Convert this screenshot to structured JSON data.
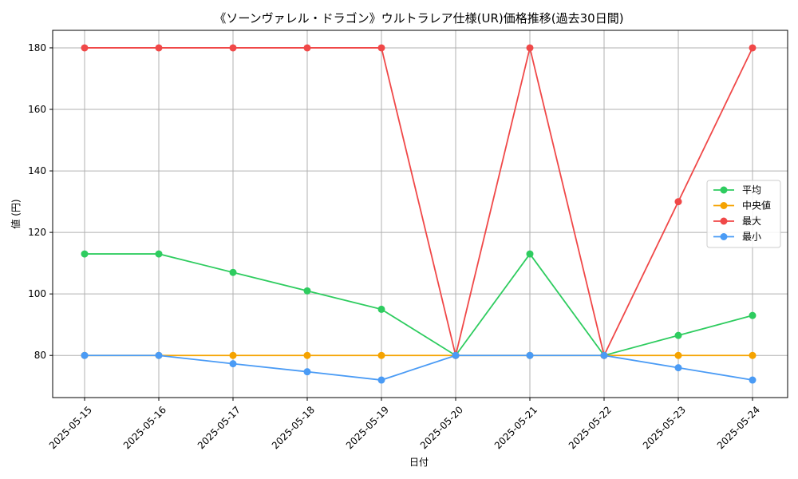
{
  "chart_data": {
    "type": "line",
    "title": "《ソーンヴァレル・ドラゴン》ウルトラレア仕様(UR)価格推移(過去30日間)",
    "xlabel": "日付",
    "ylabel": "値 (円)",
    "categories": [
      "2025-05-15",
      "2025-05-16",
      "2025-05-17",
      "2025-05-18",
      "2025-05-19",
      "2025-05-20",
      "2025-05-21",
      "2025-05-22",
      "2025-05-23",
      "2025-05-24"
    ],
    "ylim": [
      66.3,
      185.7
    ],
    "yticks": [
      80,
      100,
      120,
      140,
      160,
      180
    ],
    "grid": true,
    "legend_position": "center-right",
    "series": [
      {
        "name": "平均",
        "color": "#2ecc5f",
        "values": [
          113,
          113,
          107,
          101,
          95,
          80,
          113,
          80,
          86.5,
          93
        ]
      },
      {
        "name": "中央値",
        "color": "#f5a300",
        "values": [
          80,
          80,
          80,
          80,
          80,
          80,
          80,
          80,
          80,
          80
        ]
      },
      {
        "name": "最大",
        "color": "#f04848",
        "values": [
          180,
          180,
          180,
          180,
          180,
          80,
          180,
          80,
          130,
          180
        ]
      },
      {
        "name": "最小",
        "color": "#4a9bf5",
        "values": [
          80,
          80,
          77.3,
          74.7,
          72,
          80,
          80,
          80,
          76,
          72
        ]
      }
    ]
  }
}
